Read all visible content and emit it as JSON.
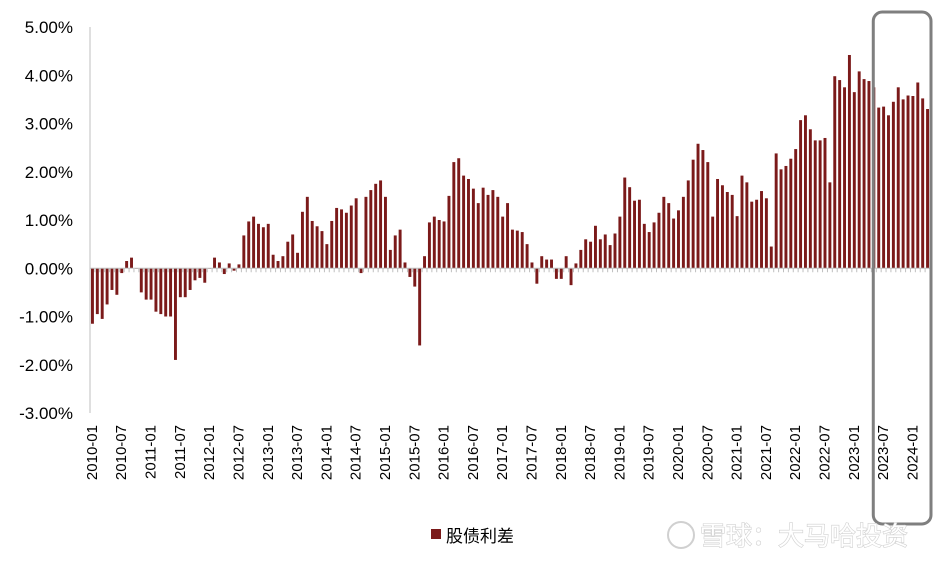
{
  "chart_data": {
    "type": "bar",
    "title": "",
    "xlabel": "",
    "ylabel": "",
    "ylim": [
      -3.0,
      5.0
    ],
    "y_ticks": [
      "5.00%",
      "4.00%",
      "3.00%",
      "2.00%",
      "1.00%",
      "0.00%",
      "-1.00%",
      "-2.00%",
      "-3.00%"
    ],
    "y_tick_values": [
      5,
      4,
      3,
      2,
      1,
      0,
      -1,
      -2,
      -3
    ],
    "x_tick_labels": [
      "2010-01",
      "2010-07",
      "2011-01",
      "2011-07",
      "2012-01",
      "2012-07",
      "2013-01",
      "2013-07",
      "2014-01",
      "2014-07",
      "2015-01",
      "2015-07",
      "2016-01",
      "2016-07",
      "2017-01",
      "2017-07",
      "2018-01",
      "2018-07",
      "2019-01",
      "2019-07",
      "2020-01",
      "2020-07",
      "2021-01",
      "2021-07",
      "2022-01",
      "2022-07",
      "2023-01",
      "2023-07",
      "2024-01"
    ],
    "start_month": "2010-01",
    "grid": false,
    "legend_position": "bottom-center",
    "series": [
      {
        "name": "股债利差",
        "color": "#7B1A1A",
        "values": [
          -1.15,
          -0.95,
          -1.05,
          -0.75,
          -0.45,
          -0.55,
          -0.1,
          0.15,
          0.22,
          0.0,
          -0.5,
          -0.65,
          -0.65,
          -0.9,
          -0.95,
          -1.0,
          -1.0,
          -1.9,
          -0.6,
          -0.6,
          -0.45,
          -0.25,
          -0.2,
          -0.3,
          0.0,
          0.22,
          0.12,
          -0.12,
          0.1,
          -0.05,
          0.08,
          0.68,
          0.97,
          1.07,
          0.92,
          0.85,
          0.92,
          0.28,
          0.15,
          0.25,
          0.55,
          0.7,
          0.32,
          1.17,
          1.48,
          0.98,
          0.87,
          0.77,
          0.5,
          0.98,
          1.25,
          1.22,
          1.15,
          1.3,
          1.45,
          -0.1,
          1.48,
          1.62,
          1.75,
          1.82,
          1.48,
          0.38,
          0.68,
          0.8,
          0.12,
          -0.18,
          -0.38,
          -1.6,
          0.25,
          0.95,
          1.07,
          1.0,
          0.97,
          1.5,
          2.2,
          2.28,
          1.92,
          1.85,
          1.65,
          1.35,
          1.67,
          1.52,
          1.62,
          1.48,
          1.07,
          1.35,
          0.8,
          0.78,
          0.75,
          0.5,
          0.12,
          -0.32,
          0.25,
          0.18,
          0.18,
          -0.22,
          -0.22,
          0.25,
          -0.35,
          0.1,
          0.38,
          0.6,
          0.55,
          0.88,
          0.6,
          0.7,
          0.48,
          0.72,
          1.07,
          1.88,
          1.68,
          1.4,
          1.42,
          0.92,
          0.75,
          0.95,
          1.15,
          1.48,
          1.35,
          1.03,
          1.2,
          1.48,
          1.82,
          2.25,
          2.58,
          2.45,
          2.2,
          1.07,
          1.85,
          1.72,
          1.58,
          1.52,
          1.08,
          1.92,
          1.78,
          1.38,
          1.42,
          1.6,
          1.45,
          0.45,
          2.38,
          2.05,
          2.12,
          2.27,
          2.47,
          3.07,
          3.17,
          2.88,
          2.65,
          2.65,
          2.7,
          1.78,
          3.98,
          3.9,
          3.75,
          4.42,
          3.65,
          4.08,
          3.92,
          3.88,
          3.75,
          3.33,
          3.35,
          3.17,
          3.45,
          3.75,
          3.5,
          3.58,
          3.57,
          3.85,
          3.52,
          3.3
        ]
      }
    ]
  },
  "legend": {
    "label": "股债利差",
    "swatch_color": "#7B1A1A"
  },
  "watermark": {
    "text": "雪球：大马哈投资"
  },
  "highlight": {
    "color": "#7f7f7f",
    "from_month": "2023-06"
  }
}
